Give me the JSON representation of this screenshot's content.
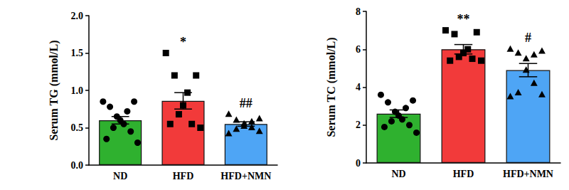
{
  "chart_data": [
    {
      "type": "bar",
      "y_label": "Serum TG (mmol/L)",
      "categories": [
        "ND",
        "HFD",
        "HFD+NMN"
      ],
      "values": [
        0.6,
        0.86,
        0.55
      ],
      "errors": [
        0.05,
        0.11,
        0.03
      ],
      "colors": [
        "#2fb12f",
        "#f23a3a",
        "#4ea5f5"
      ],
      "points": [
        {
          "marker": "circle",
          "values": [
            0.85,
            0.85,
            0.78,
            0.72,
            0.65,
            0.6,
            0.55,
            0.5,
            0.45,
            0.35,
            0.3
          ]
        },
        {
          "marker": "square",
          "values": [
            1.5,
            1.2,
            1.2,
            0.97,
            0.8,
            0.68,
            0.55,
            0.55,
            0.5
          ]
        },
        {
          "marker": "triangle",
          "values": [
            0.68,
            0.62,
            0.6,
            0.58,
            0.55,
            0.52,
            0.5,
            0.48,
            0.45,
            0.42
          ]
        }
      ],
      "annotations": [
        {
          "category": "HFD",
          "text": "*"
        },
        {
          "category": "HFD+NMN",
          "text": "##"
        }
      ],
      "ylim": [
        0,
        2
      ],
      "yticks": [
        {
          "value": 0,
          "label": "0.0"
        },
        {
          "value": 0.5,
          "label": "0.5"
        },
        {
          "value": 1,
          "label": "1.0"
        },
        {
          "value": 1.5,
          "label": "1.5"
        },
        {
          "value": 2,
          "label": "2.0"
        }
      ],
      "grid": false
    },
    {
      "type": "bar",
      "y_label": "Serum TC (mmol/L)",
      "categories": [
        "ND",
        "HFD",
        "HFD+NMN"
      ],
      "values": [
        2.6,
        6.0,
        4.9
      ],
      "errors": [
        0.2,
        0.25,
        0.35
      ],
      "colors": [
        "#2fb12f",
        "#f23a3a",
        "#4ea5f5"
      ],
      "points": [
        {
          "marker": "circle",
          "values": [
            3.6,
            3.3,
            3.2,
            2.9,
            2.7,
            2.5,
            2.3,
            2.2,
            2.0,
            1.9,
            1.6
          ]
        },
        {
          "marker": "square",
          "values": [
            7.0,
            6.9,
            6.8,
            6.0,
            5.8,
            5.6,
            5.5,
            5.4,
            5.4
          ]
        },
        {
          "marker": "triangle",
          "values": [
            6.0,
            5.9,
            5.8,
            5.7,
            5.5,
            4.9,
            4.2,
            3.7,
            3.6,
            3.5
          ]
        }
      ],
      "annotations": [
        {
          "category": "HFD",
          "text": "**"
        },
        {
          "category": "HFD+NMN",
          "text": "#"
        }
      ],
      "ylim": [
        0,
        8
      ],
      "yticks": [
        0,
        2,
        4,
        6,
        8
      ],
      "grid": false
    }
  ]
}
